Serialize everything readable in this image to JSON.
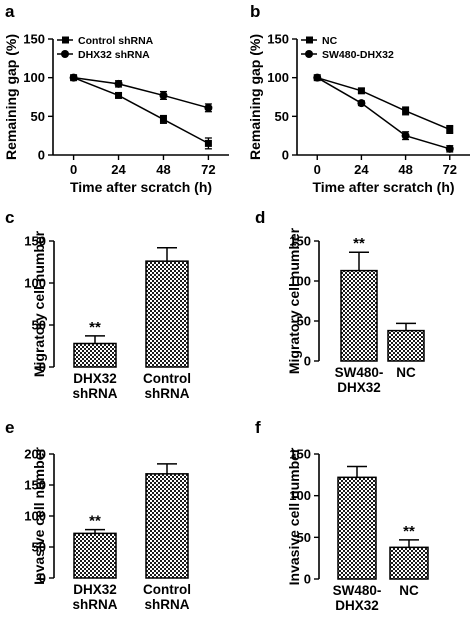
{
  "figure": {
    "panel_letters": [
      "a",
      "b",
      "c",
      "d",
      "e",
      "f"
    ]
  },
  "style": {
    "line_color": "#000000",
    "bar_pattern": "checkered"
  },
  "chart_data": [
    {
      "panel": "a",
      "type": "line",
      "xlabel": "Time after scratch (h)",
      "ylabel": "Remaining gap (%)",
      "x": [
        0,
        24,
        48,
        72
      ],
      "xticks": [
        "0",
        "24",
        "48",
        "72"
      ],
      "yticks": [
        0,
        50,
        100,
        150
      ],
      "xlim": [
        -11,
        83
      ],
      "ylim": [
        0,
        150
      ],
      "grid": false,
      "legend_position": "top-left",
      "series": [
        {
          "name": "Control shRNA",
          "marker": "square",
          "values": [
            100,
            77,
            46,
            15
          ],
          "errors": [
            0,
            3,
            5,
            7
          ]
        },
        {
          "name": "DHX32 shRNA",
          "marker": "circle",
          "values": [
            100,
            92,
            77,
            61
          ],
          "errors": [
            0,
            4,
            5,
            5
          ]
        }
      ]
    },
    {
      "panel": "b",
      "type": "line",
      "xlabel": "Time after scratch (h)",
      "ylabel": "Remaining gap (%)",
      "x": [
        0,
        24,
        48,
        72
      ],
      "xticks": [
        "0",
        "24",
        "48",
        "72"
      ],
      "yticks": [
        0,
        50,
        100,
        150
      ],
      "xlim": [
        -11,
        83
      ],
      "ylim": [
        0,
        150
      ],
      "grid": false,
      "legend_position": "top-left",
      "series": [
        {
          "name": "NC",
          "marker": "square",
          "values": [
            100,
            83,
            57,
            33
          ],
          "errors": [
            0,
            3,
            5,
            5
          ]
        },
        {
          "name": "SW480-DHX32",
          "marker": "circle",
          "values": [
            100,
            67,
            25,
            8
          ],
          "errors": [
            0,
            3,
            5,
            4
          ]
        }
      ]
    },
    {
      "panel": "c",
      "type": "bar",
      "ylabel": "Migratory cell number",
      "categories": [
        [
          "DHX32",
          "shRNA"
        ],
        [
          "Control",
          "shRNA"
        ]
      ],
      "values": [
        28,
        126
      ],
      "errors": [
        9,
        16
      ],
      "annotations": [
        "**",
        ""
      ],
      "yticks": [
        0,
        50,
        100,
        150
      ],
      "ylim": [
        0,
        150
      ],
      "grid": false
    },
    {
      "panel": "d",
      "type": "bar",
      "ylabel": "Migratory cell number",
      "categories": [
        [
          "SW480-",
          "DHX32"
        ],
        [
          "NC"
        ]
      ],
      "values": [
        113,
        38
      ],
      "errors": [
        23,
        9
      ],
      "annotations": [
        "**",
        ""
      ],
      "yticks": [
        0,
        50,
        100,
        150
      ],
      "ylim": [
        0,
        150
      ],
      "grid": false
    },
    {
      "panel": "e",
      "type": "bar",
      "ylabel": "Invasive cell number",
      "categories": [
        [
          "DHX32",
          "shRNA"
        ],
        [
          "Control",
          "shRNA"
        ]
      ],
      "values": [
        72,
        168
      ],
      "errors": [
        6,
        16
      ],
      "annotations": [
        "**",
        ""
      ],
      "yticks": [
        0,
        50,
        100,
        150,
        200
      ],
      "ylim": [
        0,
        200
      ],
      "grid": false
    },
    {
      "panel": "f",
      "type": "bar",
      "ylabel": "Invasive cell number",
      "categories": [
        [
          "SW480-",
          "DHX32"
        ],
        [
          "NC"
        ]
      ],
      "values": [
        122,
        38
      ],
      "errors": [
        13,
        9
      ],
      "annotations": [
        "",
        "**"
      ],
      "yticks": [
        0,
        50,
        100,
        150
      ],
      "ylim": [
        0,
        150
      ],
      "grid": false
    }
  ]
}
